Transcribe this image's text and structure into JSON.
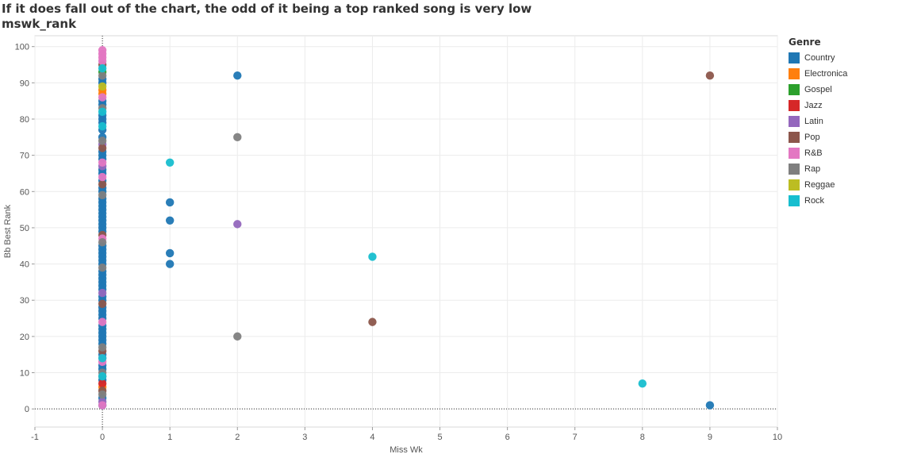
{
  "title_line1": "If it does fall out of the chart, the odd of it being a top ranked song is very low",
  "title_line2": "mswk_rank",
  "legend": {
    "title": "Genre",
    "items": [
      {
        "label": "Country",
        "color": "#1f77b4"
      },
      {
        "label": "Electronica",
        "color": "#ff7f0e"
      },
      {
        "label": "Gospel",
        "color": "#2ca02c"
      },
      {
        "label": "Jazz",
        "color": "#d62728"
      },
      {
        "label": "Latin",
        "color": "#9467bd"
      },
      {
        "label": "Pop",
        "color": "#8c564b"
      },
      {
        "label": "R&B",
        "color": "#e377c2"
      },
      {
        "label": "Rap",
        "color": "#7f7f7f"
      },
      {
        "label": "Reggae",
        "color": "#bcbd22"
      },
      {
        "label": "Rock",
        "color": "#17becf"
      }
    ]
  },
  "chart_data": {
    "type": "scatter",
    "xlabel": "Miss Wk",
    "ylabel": "Bb Best Rank",
    "xlim": [
      -1,
      10
    ],
    "ylim": [
      -5,
      103
    ],
    "xticks": [
      -1,
      0,
      1,
      2,
      3,
      4,
      5,
      6,
      7,
      8,
      9,
      10
    ],
    "yticks": [
      0,
      10,
      20,
      30,
      40,
      50,
      60,
      70,
      80,
      90,
      100
    ],
    "grid": true,
    "legend_position": "right",
    "series": [
      {
        "name": "Country",
        "color": "#1f77b4",
        "points": [
          [
            0,
            1
          ],
          [
            0,
            3
          ],
          [
            0,
            8
          ],
          [
            0,
            11
          ],
          [
            0,
            12
          ],
          [
            0,
            15
          ],
          [
            0,
            18
          ],
          [
            0,
            19
          ],
          [
            0,
            20
          ],
          [
            0,
            21
          ],
          [
            0,
            22
          ],
          [
            0,
            23
          ],
          [
            0,
            25
          ],
          [
            0,
            26
          ],
          [
            0,
            27
          ],
          [
            0,
            28
          ],
          [
            0,
            30
          ],
          [
            0,
            31
          ],
          [
            0,
            33
          ],
          [
            0,
            34
          ],
          [
            0,
            35
          ],
          [
            0,
            36
          ],
          [
            0,
            37
          ],
          [
            0,
            38
          ],
          [
            0,
            40
          ],
          [
            0,
            41
          ],
          [
            0,
            42
          ],
          [
            0,
            43
          ],
          [
            0,
            44
          ],
          [
            0,
            45
          ],
          [
            0,
            49
          ],
          [
            0,
            50
          ],
          [
            0,
            51
          ],
          [
            0,
            52
          ],
          [
            0,
            53
          ],
          [
            0,
            54
          ],
          [
            0,
            55
          ],
          [
            0,
            56
          ],
          [
            0,
            57
          ],
          [
            0,
            58
          ],
          [
            0,
            60
          ],
          [
            0,
            61
          ],
          [
            0,
            63
          ],
          [
            0,
            65
          ],
          [
            0,
            66
          ],
          [
            0,
            69
          ],
          [
            0,
            70
          ],
          [
            0,
            71
          ],
          [
            0,
            75
          ],
          [
            0,
            77
          ],
          [
            0,
            79
          ],
          [
            0,
            80
          ],
          [
            0,
            81
          ],
          [
            0,
            84
          ],
          [
            0,
            85
          ],
          [
            0,
            90
          ],
          [
            0,
            91
          ],
          [
            1,
            40
          ],
          [
            1,
            43
          ],
          [
            1,
            52
          ],
          [
            1,
            57
          ],
          [
            2,
            92
          ],
          [
            9,
            1
          ]
        ]
      },
      {
        "name": "Electronica",
        "color": "#ff7f0e",
        "points": [
          [
            0,
            6
          ],
          [
            0,
            87
          ],
          [
            0,
            88
          ]
        ]
      },
      {
        "name": "Gospel",
        "color": "#2ca02c",
        "points": [
          [
            0,
            93
          ]
        ]
      },
      {
        "name": "Jazz",
        "color": "#d62728",
        "points": [
          [
            0,
            7
          ]
        ]
      },
      {
        "name": "Latin",
        "color": "#9467bd",
        "points": [
          [
            0,
            2
          ],
          [
            0,
            32
          ],
          [
            0,
            67
          ],
          [
            0,
            73
          ],
          [
            2,
            51
          ]
        ]
      },
      {
        "name": "Pop",
        "color": "#8c564b",
        "points": [
          [
            0,
            5
          ],
          [
            0,
            16
          ],
          [
            0,
            29
          ],
          [
            0,
            48
          ],
          [
            0,
            62
          ],
          [
            0,
            72
          ],
          [
            0,
            95
          ],
          [
            4,
            24
          ],
          [
            9,
            92
          ]
        ]
      },
      {
        "name": "R&B",
        "color": "#e377c2",
        "points": [
          [
            0,
            1
          ],
          [
            0,
            13
          ],
          [
            0,
            14
          ],
          [
            0,
            24
          ],
          [
            0,
            47
          ],
          [
            0,
            64
          ],
          [
            0,
            68
          ],
          [
            0,
            86
          ],
          [
            0,
            96
          ],
          [
            0,
            97
          ],
          [
            0,
            98
          ],
          [
            0,
            99
          ]
        ]
      },
      {
        "name": "Rap",
        "color": "#7f7f7f",
        "points": [
          [
            0,
            4
          ],
          [
            0,
            9
          ],
          [
            0,
            10
          ],
          [
            0,
            17
          ],
          [
            0,
            39
          ],
          [
            0,
            46
          ],
          [
            0,
            59
          ],
          [
            0,
            74
          ],
          [
            0,
            83
          ],
          [
            0,
            92
          ],
          [
            2,
            20
          ],
          [
            2,
            75
          ]
        ]
      },
      {
        "name": "Reggae",
        "color": "#bcbd22",
        "points": [
          [
            0,
            89
          ]
        ]
      },
      {
        "name": "Rock",
        "color": "#17becf",
        "points": [
          [
            0,
            9
          ],
          [
            0,
            14
          ],
          [
            0,
            78
          ],
          [
            0,
            82
          ],
          [
            0,
            94
          ],
          [
            1,
            68
          ],
          [
            4,
            42
          ],
          [
            8,
            7
          ]
        ]
      }
    ]
  }
}
